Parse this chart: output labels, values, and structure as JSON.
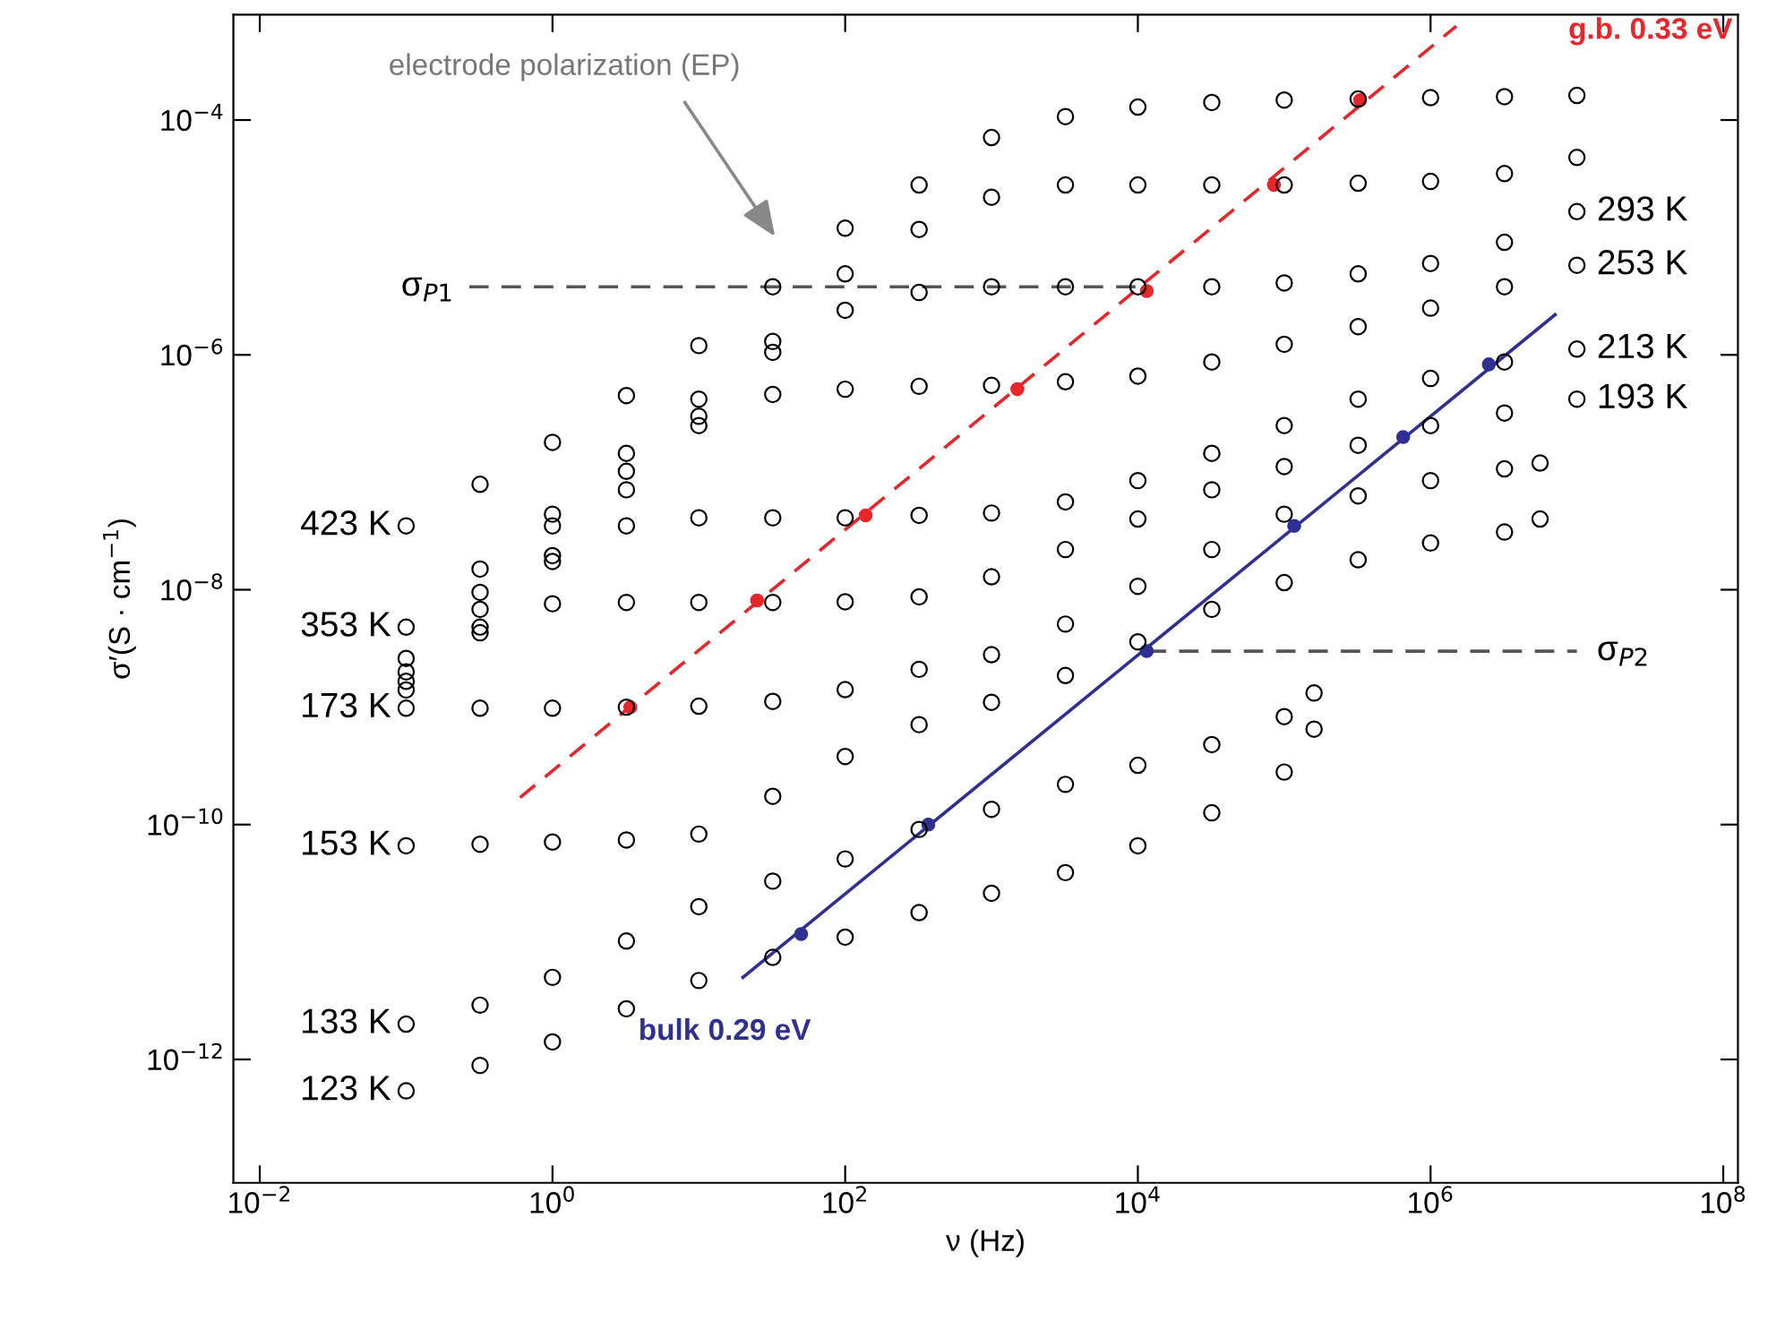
{
  "chart_data": {
    "type": "scatter",
    "xlabel": "ν (Hz)",
    "ylabel": "σ′(S · cm$^{−1}$)",
    "log": "xy",
    "grid": false,
    "legend": false,
    "marker": "circle",
    "xlim": [
      0.0066,
      126000000.0
    ],
    "ylim": [
      8.9e-14,
      0.00079
    ],
    "xticks": [
      {
        "value": 0.01,
        "label": "10$^{−2}$"
      },
      {
        "value": 1,
        "label": "10$^{0}$"
      },
      {
        "value": 100,
        "label": "10$^{2}$"
      },
      {
        "value": 10000,
        "label": "10$^{4}$"
      },
      {
        "value": 1000000,
        "label": "10$^{6}$"
      },
      {
        "value": 100000000,
        "label": "10$^{8}$"
      }
    ],
    "yticks": [
      {
        "value": 1e-12,
        "label": "10$^{−12}$"
      },
      {
        "value": 1e-10,
        "label": "10$^{−10}$"
      },
      {
        "value": 1e-08,
        "label": "10$^{−8}$"
      },
      {
        "value": 1e-06,
        "label": "10$^{−6}$"
      },
      {
        "value": 0.0001,
        "label": "10$^{−4}$"
      }
    ],
    "x": [
      0.1,
      0.32,
      1,
      3.2,
      10,
      32,
      100,
      320,
      1000,
      3200,
      10000,
      32000,
      100000,
      320000,
      1000000,
      3200000,
      10000000
    ],
    "series": [
      {
        "color": "#000000",
        "values": [
          3.5e-08,
          7.9e-08,
          1.8e-07,
          4.5e-07,
          1.2e-06,
          3.8e-06,
          1.2e-05,
          2.8e-05,
          7.1e-05,
          0.000107,
          0.000129,
          0.000141,
          0.000148,
          0.000151,
          0.000155,
          0.000158,
          0.000162
        ]
      },
      {
        "color": "#000000",
        "values": [
          4.8e-09,
          1.5e-08,
          4.4e-08,
          1.45e-07,
          4.2e-07,
          1.3e-06,
          4.9e-06,
          1.17e-05,
          2.2e-05,
          2.8e-05,
          2.8e-05,
          2.8e-05,
          2.8e-05,
          2.9e-05,
          3e-05,
          3.5e-05,
          4.8e-05
        ]
      },
      {
        "color": "#000000",
        "values": [
          1.4e-09,
          4.8e-09,
          1.95e-08,
          7.1e-08,
          3e-07,
          1.05e-06,
          2.4e-06,
          3.4e-06,
          3.8e-06,
          3.8e-06,
          3.8e-06,
          3.8e-06,
          4.1e-06,
          4.9e-06,
          6e-06,
          9.1e-06,
          1.66e-05
        ]
      },
      {
        "color": "#000000",
        "values": [
          2e-09,
          9.5e-09,
          3.5e-08,
          1.02e-07,
          2.5e-07,
          4.6e-07,
          5.1e-07,
          5.4e-07,
          5.5e-07,
          5.9e-07,
          6.6e-07,
          8.7e-07,
          1.23e-06,
          1.74e-06,
          2.5e-06,
          3.8e-06,
          5.8e-06
        ]
      },
      {
        "color": "#000000",
        "values": [
          2.6e-09,
          6.8e-09,
          1.74e-08,
          3.5e-08,
          4.1e-08,
          4.1e-08,
          4.1e-08,
          4.3e-08,
          4.5e-08,
          5.6e-08,
          8.5e-08,
          1.45e-07,
          2.5e-07,
          4.2e-07,
          6.3e-07,
          8.7e-07,
          1.12e-06
        ]
      },
      {
        "color": "#000000",
        "values": [
          1.66e-09,
          4.3e-09,
          7.6e-09,
          7.8e-09,
          7.8e-09,
          7.8e-09,
          7.9e-09,
          8.7e-09,
          1.29e-08,
          2.2e-08,
          4e-08,
          7.1e-08,
          1.12e-07,
          1.7e-07,
          2.5e-07,
          3.2e-07,
          4.2e-07
        ]
      },
      {
        "color": "#000000",
        "x": [
          0.1,
          0.32,
          1,
          3.2,
          10,
          32,
          100,
          320,
          1000,
          3200,
          10000,
          32000,
          100000,
          320000,
          1000000,
          3200000,
          5600000
        ],
        "values": [
          9.8e-10,
          9.8e-10,
          9.8e-10,
          1e-09,
          1.02e-09,
          1.12e-09,
          1.41e-09,
          2.1e-09,
          2.8e-09,
          5.1e-09,
          1.07e-08,
          2.2e-08,
          4.4e-08,
          6.3e-08,
          8.5e-08,
          1.07e-07,
          1.2e-07
        ]
      },
      {
        "color": "#000000",
        "x": [
          0.1,
          0.32,
          1,
          3.2,
          10,
          32,
          100,
          320,
          1000,
          3200,
          10000,
          32000,
          100000,
          320000,
          1000000,
          3200000,
          5600000
        ],
        "values": [
          6.6e-11,
          6.8e-11,
          7.1e-11,
          7.4e-11,
          8.3e-11,
          1.74e-10,
          3.8e-10,
          7.1e-10,
          1.1e-09,
          1.86e-09,
          3.6e-09,
          6.8e-09,
          1.15e-08,
          1.8e-08,
          2.5e-08,
          3.1e-08,
          4e-08
        ]
      },
      {
        "color": "#000000",
        "x": [
          0.1,
          0.32,
          1,
          3.2,
          10,
          32,
          100,
          320,
          1000,
          3200,
          10000,
          32000,
          100000,
          160000
        ],
        "values": [
          2e-12,
          2.9e-12,
          5e-12,
          1.02e-11,
          2e-11,
          3.3e-11,
          5.1e-11,
          9.1e-11,
          1.35e-10,
          2.2e-10,
          3.2e-10,
          4.8e-10,
          8.3e-10,
          1.32e-09
        ]
      },
      {
        "color": "#000000",
        "x": [
          0.1,
          0.32,
          1,
          3.2,
          10,
          32,
          100,
          320,
          1000,
          3200,
          10000,
          32000,
          100000,
          160000
        ],
        "values": [
          5.4e-13,
          8.9e-13,
          1.41e-12,
          2.7e-12,
          4.7e-12,
          7.4e-12,
          1.1e-11,
          1.78e-11,
          2.6e-11,
          3.9e-11,
          6.6e-11,
          1.26e-10,
          2.8e-10,
          6.5e-10
        ]
      },
      {
        "type": "line",
        "name": "g.b. 0.33 eV",
        "color": "#e8262a",
        "line_style": "dashed",
        "marker": "none",
        "x": [
          0.6,
          1500000
        ],
        "values": [
          1.7e-10,
          0.00063
        ]
      },
      {
        "color": "#e8262a",
        "x": [
          3.4,
          25,
          138,
          1500,
          11500,
          85000,
          330000
        ],
        "values": [
          1e-09,
          8.1e-09,
          4.3e-08,
          5.1e-07,
          3.5e-06,
          2.8e-05,
          0.000148
        ]
      },
      {
        "type": "line",
        "name": "bulk 0.29 eV",
        "color": "#2e3192",
        "line_style": "solid",
        "marker": "none",
        "x": [
          20,
          7100000
        ],
        "values": [
          5e-12,
          2.2e-06
        ]
      },
      {
        "color": "#2e3192",
        "x": [
          50,
          370,
          11500,
          117000,
          650000,
          2500000
        ],
        "values": [
          1.17e-11,
          1e-10,
          3e-09,
          3.5e-08,
          2e-07,
          8.3e-07
        ]
      },
      {
        "type": "line",
        "color": "#555555",
        "line_style": "dashed",
        "marker": "none",
        "x": [
          0.27,
          11500
        ],
        "values": [
          3.8e-06,
          3.8e-06
        ]
      },
      {
        "type": "line",
        "color": "#555555",
        "line_style": "dashed",
        "marker": "none",
        "x": [
          11500,
          10000000
        ],
        "values": [
          3e-09,
          3e-09
        ]
      }
    ],
    "annotations": [
      "electrode polarization (EP)",
      {
        "text": "σ$_{P1}$",
        "x": 0.27,
        "y": 3.8e-06
      },
      {
        "text": "σ$_{P2}$",
        "x": 10000000,
        "y": 3e-09
      },
      {
        "text": "423 K",
        "x": 0.1,
        "y": 3.5e-08
      },
      {
        "text": "353 K",
        "x": 0.1,
        "y": 4.8e-09
      },
      {
        "text": "173 K",
        "x": 0.1,
        "y": 9.8e-10
      },
      {
        "text": "153 K",
        "x": 0.1,
        "y": 6.6e-11
      },
      {
        "text": "133 K",
        "x": 0.1,
        "y": 2e-12
      },
      {
        "text": "123 K",
        "x": 0.1,
        "y": 5.4e-13
      },
      {
        "text": "293 K",
        "x": 10000000,
        "y": 1.66e-05
      },
      {
        "text": "253 K",
        "x": 10000000,
        "y": 5.8e-06
      },
      {
        "text": "213 K",
        "x": 10000000,
        "y": 1.12e-06
      },
      {
        "text": "193 K",
        "x": 10000000,
        "y": 4.2e-07
      }
    ]
  }
}
